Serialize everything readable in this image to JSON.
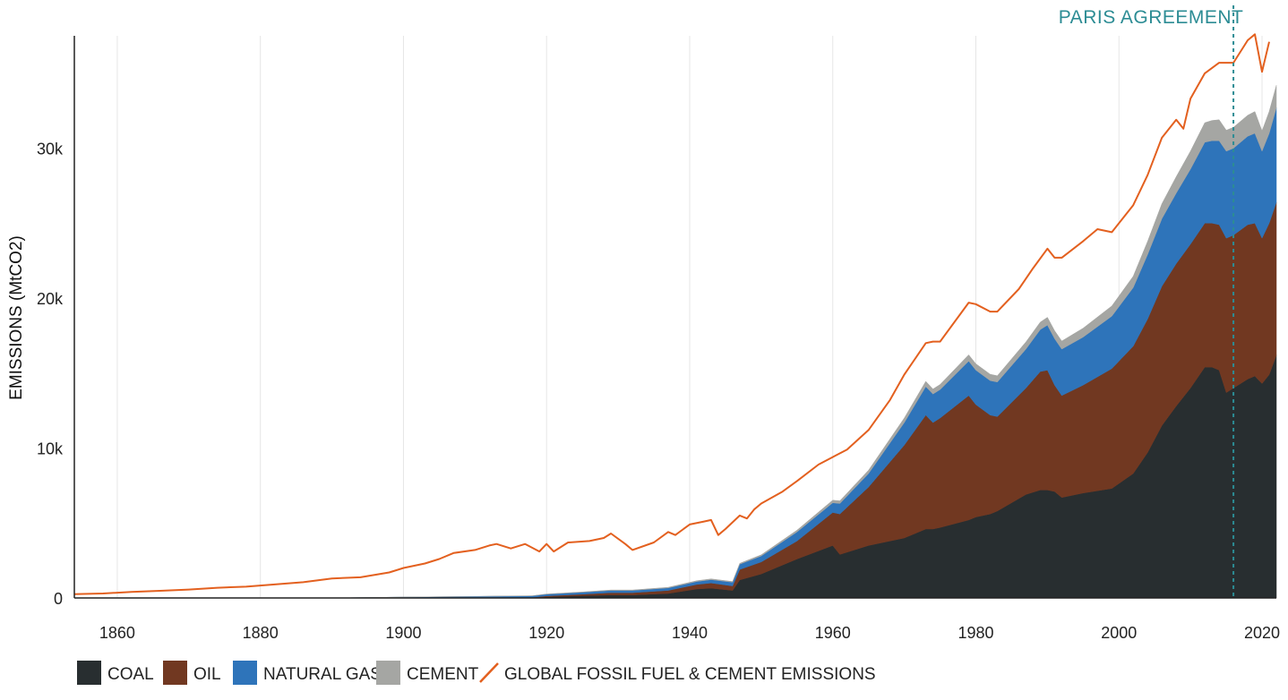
{
  "chart_data": {
    "type": "area",
    "title": "",
    "ylabel": "EMISSIONS (MtCO2)",
    "xlabel": "",
    "xlim": [
      1854,
      2022
    ],
    "ylim": [
      0,
      37500
    ],
    "xticks": [
      1860,
      1880,
      1900,
      1920,
      1940,
      1960,
      1980,
      2000,
      2020
    ],
    "xtick_labels": [
      "1860",
      "1880",
      "1900",
      "1920",
      "1940",
      "1960",
      "1980",
      "2000",
      "2020"
    ],
    "yticks": [
      0,
      10000,
      20000,
      30000
    ],
    "ytick_labels": [
      "0",
      "10k",
      "20k",
      "30k"
    ],
    "grid": "vertical",
    "legend_position": "bottom",
    "colors": {
      "coal": "#282e30",
      "oil": "#713821",
      "gas": "#2e74ba",
      "cement": "#a5a6a3",
      "total": "#e3601f",
      "annotation": "#2c8c94"
    },
    "annotation": {
      "label": "PARIS AGREEMENT",
      "x": 2016
    },
    "x": [
      1854,
      1860,
      1870,
      1880,
      1890,
      1900,
      1910,
      1914,
      1918,
      1920,
      1925,
      1929,
      1932,
      1937,
      1941,
      1943,
      1946,
      1947,
      1950,
      1955,
      1960,
      1961,
      1965,
      1970,
      1973,
      1974,
      1975,
      1979,
      1980,
      1982,
      1983,
      1987,
      1989,
      1990,
      1991,
      1992,
      1995,
      1999,
      2002,
      2004,
      2006,
      2008,
      2010,
      2012,
      2013,
      2014,
      2015,
      2016,
      2018,
      2019,
      2020,
      2021,
      2022
    ],
    "series": [
      {
        "name": "COAL",
        "values": [
          0,
          0,
          0,
          0,
          0,
          0,
          0,
          0,
          0,
          80,
          150,
          200,
          200,
          300,
          600,
          650,
          500,
          1200,
          1600,
          2600,
          3500,
          2900,
          3500,
          4000,
          4600,
          4600,
          4700,
          5200,
          5400,
          5600,
          5800,
          6900,
          7200,
          7200,
          7100,
          6700,
          7000,
          7300,
          8300,
          9700,
          11500,
          12800,
          14000,
          15400,
          15400,
          15200,
          13700,
          14000,
          14600,
          14800,
          14300,
          14900,
          16200
        ]
      },
      {
        "name": "OIL",
        "values": [
          0,
          0,
          0,
          0,
          0,
          0,
          20,
          30,
          40,
          60,
          100,
          150,
          150,
          200,
          300,
          350,
          300,
          700,
          800,
          1200,
          2200,
          2700,
          3900,
          6200,
          7600,
          7100,
          7300,
          8300,
          7500,
          6600,
          6300,
          7100,
          7900,
          8000,
          7100,
          6800,
          7200,
          8000,
          8500,
          8900,
          9300,
          9500,
          9600,
          9600,
          9600,
          9700,
          10300,
          10200,
          10300,
          10200,
          9700,
          10100,
          10200
        ]
      },
      {
        "name": "NATURAL GAS",
        "values": [
          0,
          0,
          0,
          0,
          0,
          60,
          80,
          90,
          100,
          110,
          130,
          150,
          150,
          170,
          200,
          220,
          250,
          350,
          400,
          600,
          650,
          700,
          900,
          1500,
          1900,
          1900,
          1900,
          2300,
          2300,
          2300,
          2300,
          2600,
          2800,
          3000,
          3100,
          3100,
          3200,
          3500,
          3900,
          4300,
          4500,
          4700,
          5000,
          5400,
          5500,
          5600,
          5800,
          5800,
          5900,
          6000,
          5800,
          6000,
          6300
        ]
      },
      {
        "name": "CEMENT",
        "values": [
          0,
          0,
          0,
          0,
          0,
          0,
          10,
          10,
          10,
          15,
          20,
          30,
          30,
          40,
          50,
          50,
          50,
          60,
          80,
          120,
          170,
          180,
          220,
          300,
          350,
          340,
          340,
          420,
          420,
          420,
          420,
          480,
          500,
          520,
          530,
          540,
          600,
          680,
          760,
          880,
          1000,
          1100,
          1200,
          1300,
          1350,
          1400,
          1400,
          1400,
          1400,
          1450,
          1350,
          1450,
          1500
        ]
      }
    ],
    "total": {
      "name": "GLOBAL FOSSIL FUEL & CEMENT EMISSIONS",
      "x": [
        1854,
        1858,
        1862,
        1866,
        1870,
        1874,
        1878,
        1882,
        1886,
        1890,
        1894,
        1898,
        1900,
        1903,
        1905,
        1907,
        1910,
        1912,
        1913,
        1915,
        1917,
        1919,
        1920,
        1921,
        1923,
        1926,
        1928,
        1929,
        1931,
        1932,
        1935,
        1937,
        1938,
        1940,
        1942,
        1943,
        1944,
        1945,
        1947,
        1948,
        1949,
        1950,
        1953,
        1955,
        1958,
        1960,
        1962,
        1965,
        1968,
        1970,
        1973,
        1974,
        1975,
        1979,
        1980,
        1982,
        1983,
        1986,
        1988,
        1990,
        1991,
        1992,
        1995,
        1997,
        1999,
        2002,
        2004,
        2006,
        2008,
        2009,
        2010,
        2012,
        2014,
        2016,
        2018,
        2019,
        2020,
        2021
      ],
      "values": [
        250,
        300,
        400,
        480,
        560,
        680,
        750,
        900,
        1050,
        1300,
        1380,
        1700,
        2000,
        2300,
        2600,
        3000,
        3200,
        3500,
        3600,
        3300,
        3600,
        3100,
        3600,
        3100,
        3700,
        3800,
        4000,
        4300,
        3600,
        3200,
        3700,
        4400,
        4200,
        4900,
        5100,
        5200,
        4200,
        4600,
        5500,
        5300,
        5900,
        6300,
        7100,
        7800,
        8900,
        9400,
        9900,
        11200,
        13200,
        14900,
        17000,
        17100,
        17100,
        19700,
        19600,
        19100,
        19100,
        20600,
        22000,
        23300,
        22700,
        22700,
        23800,
        24600,
        24400,
        26200,
        28200,
        30700,
        31900,
        31300,
        33300,
        35000,
        35700,
        35700,
        37200,
        37600,
        35100,
        37100
      ]
    }
  },
  "legend": {
    "coal": "COAL",
    "oil": "OIL",
    "gas": "NATURAL GAS",
    "cement": "CEMENT",
    "total": "GLOBAL FOSSIL FUEL & CEMENT EMISSIONS"
  }
}
